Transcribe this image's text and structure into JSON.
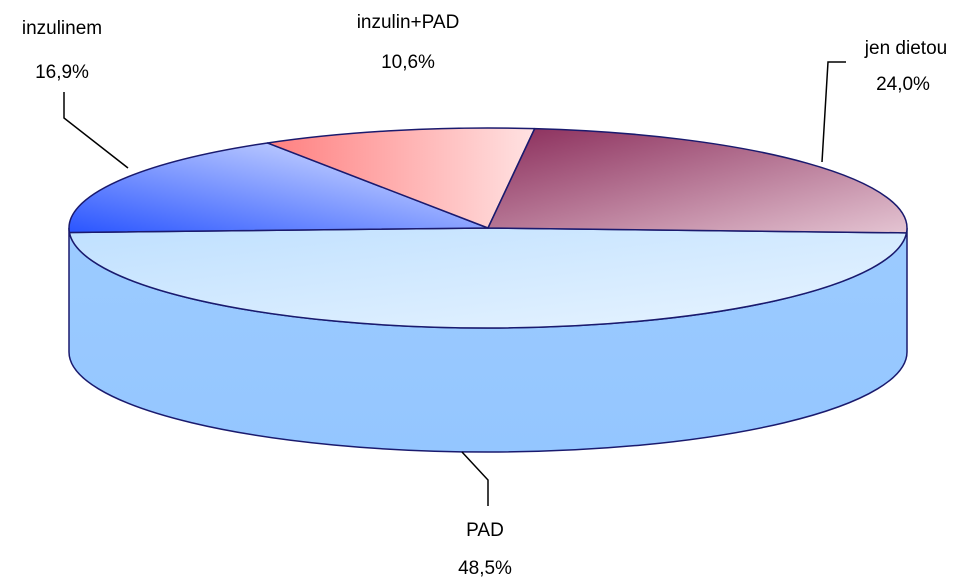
{
  "chart_data": {
    "type": "pie",
    "title": "",
    "slices": [
      {
        "label": "jen dietou",
        "value": 24.0,
        "value_text": "24,0%",
        "color": "#a0406a"
      },
      {
        "label": "PAD",
        "value": 48.5,
        "value_text": "48,5%",
        "color": "#99ccff"
      },
      {
        "label": "inzulinem",
        "value": 16.9,
        "value_text": "16,9%",
        "color": "#3366ff"
      },
      {
        "label": "inzulin+PAD",
        "value": 10.6,
        "value_text": "10,6%",
        "color": "#ff8080"
      }
    ],
    "style": "3d"
  }
}
